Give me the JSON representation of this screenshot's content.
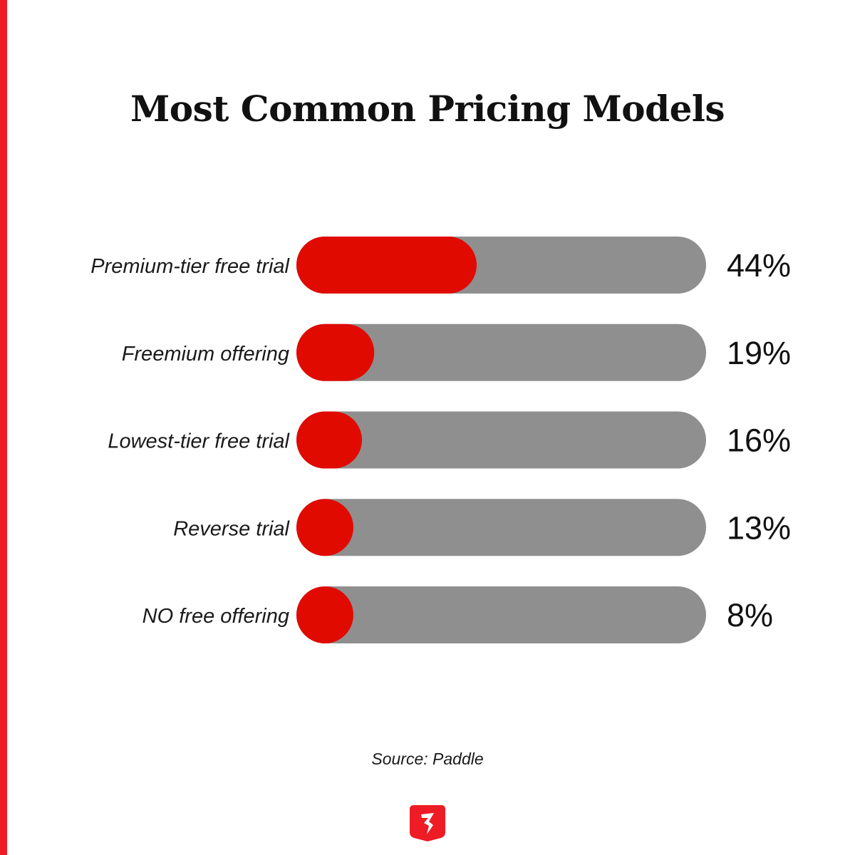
{
  "colors": {
    "accent": "#ee1c25",
    "bar_fill": "#e00a00",
    "track": "#8f8f8f",
    "text": "#111111"
  },
  "footer": {
    "source": "Source: Paddle",
    "logo_icon": "brand-logo-icon"
  },
  "chart_data": {
    "type": "bar",
    "orientation": "horizontal",
    "title": "Most Common Pricing Models",
    "xlabel": "",
    "ylabel": "",
    "xlim": [
      0,
      100
    ],
    "grid": false,
    "categories": [
      "Premium-tier free trial",
      "Freemium offering",
      "Lowest-tier free trial",
      "Reverse trial",
      "NO free offering"
    ],
    "values": [
      44,
      19,
      16,
      13,
      8
    ],
    "value_labels": [
      "44%",
      "19%",
      "16%",
      "13%",
      "8%"
    ]
  }
}
